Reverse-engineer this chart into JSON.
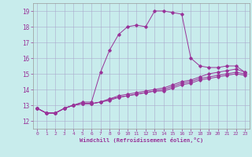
{
  "xlabel": "Windchill (Refroidissement éolien,°C)",
  "ylabel": "",
  "bg_color": "#c8ecec",
  "grid_color": "#aaaacc",
  "line_color": "#993399",
  "x_ticks": [
    0,
    1,
    2,
    3,
    4,
    5,
    6,
    7,
    8,
    9,
    10,
    11,
    12,
    13,
    14,
    15,
    16,
    17,
    18,
    19,
    20,
    21,
    22,
    23
  ],
  "y_ticks": [
    12,
    13,
    14,
    15,
    16,
    17,
    18,
    19
  ],
  "xlim": [
    -0.5,
    23.5
  ],
  "ylim": [
    11.5,
    19.5
  ],
  "series": [
    [
      12.8,
      12.5,
      12.5,
      12.8,
      13.0,
      13.2,
      13.2,
      15.1,
      16.5,
      17.5,
      18.0,
      18.1,
      18.0,
      19.0,
      19.0,
      18.9,
      18.8,
      16.0,
      15.5,
      15.4,
      15.4,
      15.5,
      15.5,
      15.1
    ],
    [
      12.8,
      12.5,
      12.5,
      12.8,
      13.0,
      13.1,
      13.1,
      13.2,
      13.4,
      13.6,
      13.7,
      13.8,
      13.9,
      14.0,
      14.1,
      14.3,
      14.5,
      14.6,
      14.8,
      15.0,
      15.1,
      15.2,
      15.3,
      15.1
    ],
    [
      12.8,
      12.5,
      12.5,
      12.8,
      13.0,
      13.1,
      13.1,
      13.2,
      13.4,
      13.5,
      13.6,
      13.7,
      13.8,
      13.9,
      14.0,
      14.2,
      14.4,
      14.5,
      14.7,
      14.8,
      14.9,
      15.0,
      15.1,
      15.0
    ],
    [
      12.8,
      12.5,
      12.5,
      12.8,
      13.0,
      13.1,
      13.1,
      13.2,
      13.3,
      13.5,
      13.6,
      13.7,
      13.8,
      13.9,
      13.9,
      14.1,
      14.3,
      14.4,
      14.6,
      14.7,
      14.8,
      14.9,
      15.0,
      14.9
    ]
  ]
}
